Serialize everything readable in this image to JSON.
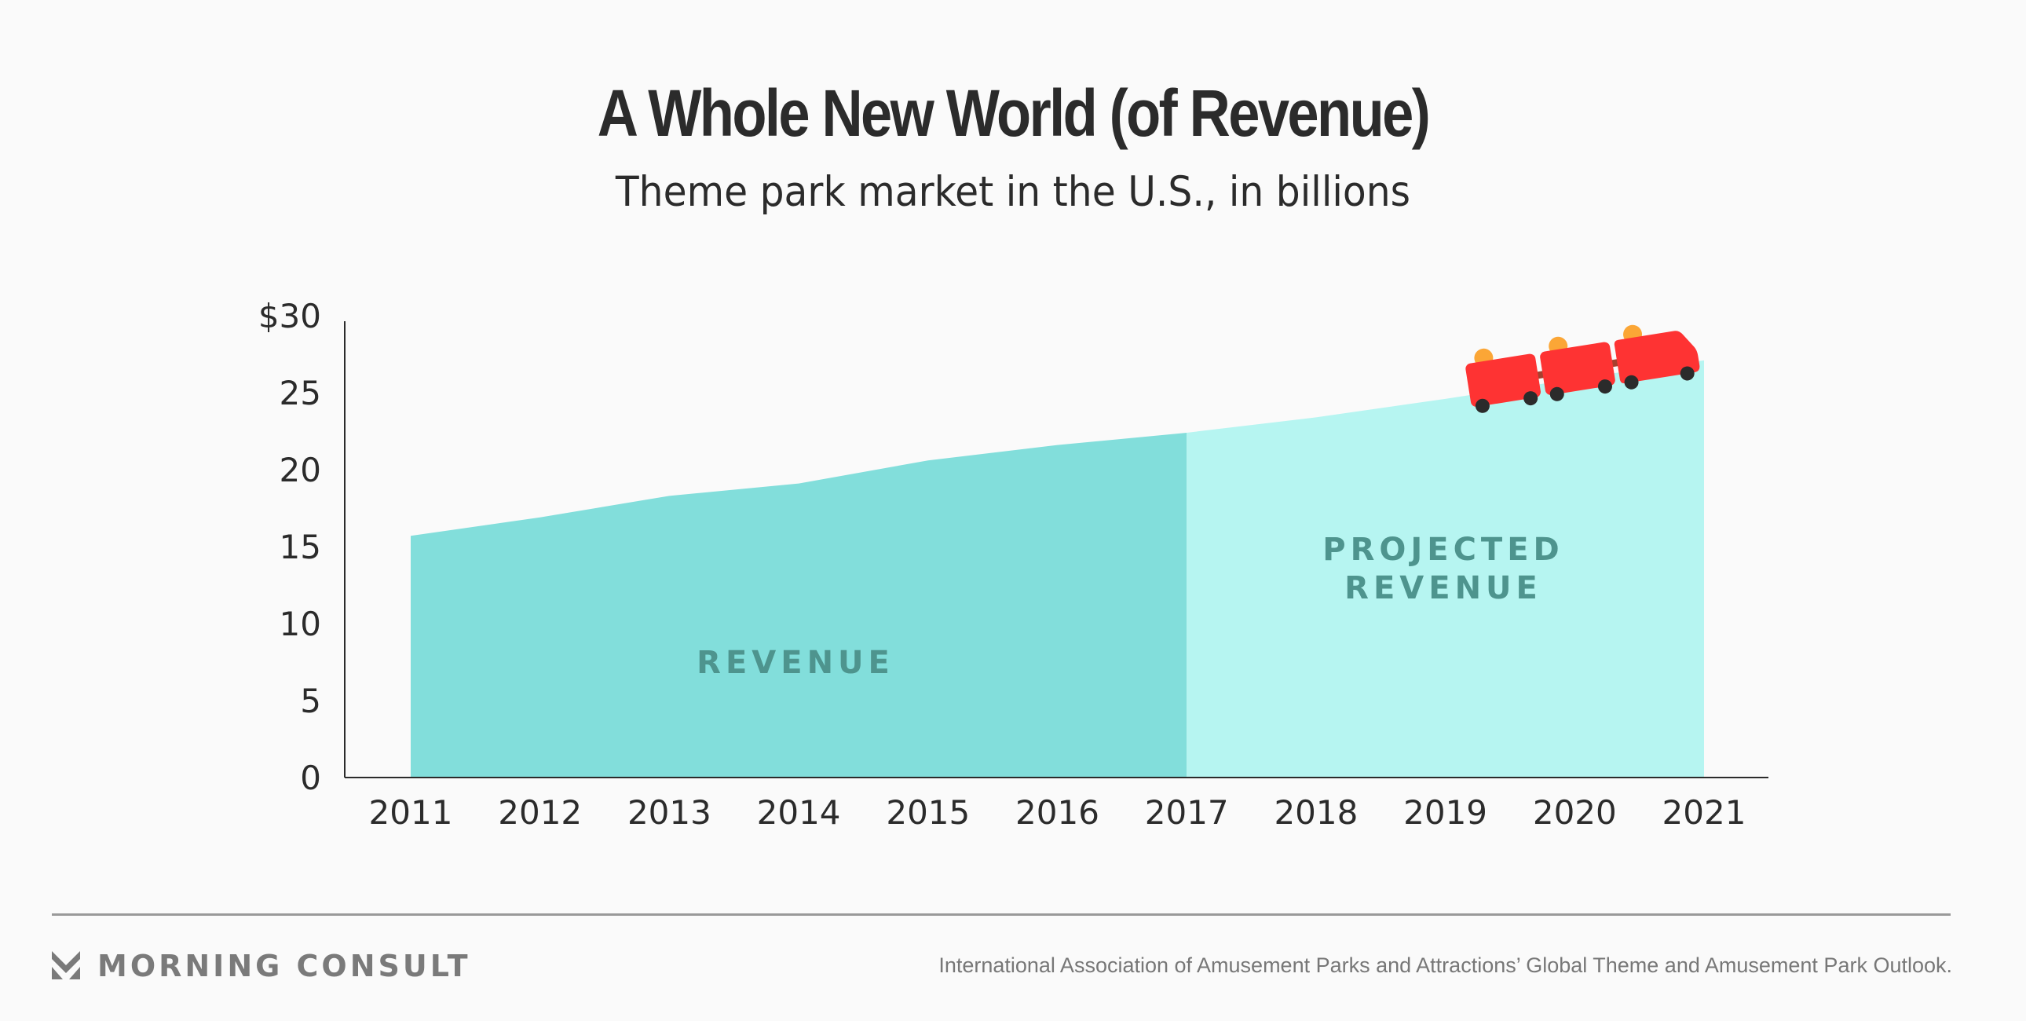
{
  "header": {
    "title": "A Whole New World (of Revenue)",
    "subtitle": "Theme park market in the U.S., in billions"
  },
  "footer": {
    "brand": "MORNING CONSULT",
    "brand_icon": "morning-consult-logo-icon",
    "source": "International Association of Amusement Parks and Attractions’ Global Theme and Amusement Park Outlook."
  },
  "colors": {
    "revenue_fill": "#82dedb",
    "projected_fill": "#b6f5f1",
    "area_label": "#4e948e",
    "coaster_car": "#fe3333",
    "coaster_rider": "#fba636",
    "coaster_wheel": "#2b2b2b",
    "coaster_link": "#a8402f",
    "axis": "#2b2b2b"
  },
  "chart_data": {
    "type": "area",
    "title": "A Whole New World (of Revenue)",
    "subtitle": "Theme park market in the U.S., in billions",
    "xlabel": "",
    "ylabel": "",
    "x": [
      2011,
      2012,
      2013,
      2014,
      2015,
      2016,
      2017,
      2018,
      2019,
      2020,
      2021
    ],
    "x_tick_labels": [
      "2011",
      "2012",
      "2013",
      "2014",
      "2015",
      "2016",
      "2017",
      "2018",
      "2019",
      "2020",
      "2021"
    ],
    "y_ticks": [
      0,
      5,
      10,
      15,
      20,
      25,
      30
    ],
    "y_tick_labels": [
      "0",
      "5",
      "10",
      "15",
      "20",
      "25",
      "$30"
    ],
    "ylim": [
      0,
      30
    ],
    "grid": false,
    "series": [
      {
        "name": "REVENUE",
        "x": [
          2011,
          2012,
          2013,
          2014,
          2015,
          2016,
          2017
        ],
        "values": [
          15.7,
          16.9,
          18.3,
          19.1,
          20.6,
          21.6,
          22.4
        ]
      },
      {
        "name": "PROJECTED REVENUE",
        "x": [
          2017,
          2018,
          2019,
          2020,
          2021
        ],
        "values": [
          22.4,
          23.4,
          24.6,
          25.9,
          27.1
        ]
      }
    ],
    "annotations": [
      "REVENUE",
      "PROJECTED",
      "REVENUE"
    ],
    "decoration": "roller coaster train on the projected line near 2019–2021"
  }
}
